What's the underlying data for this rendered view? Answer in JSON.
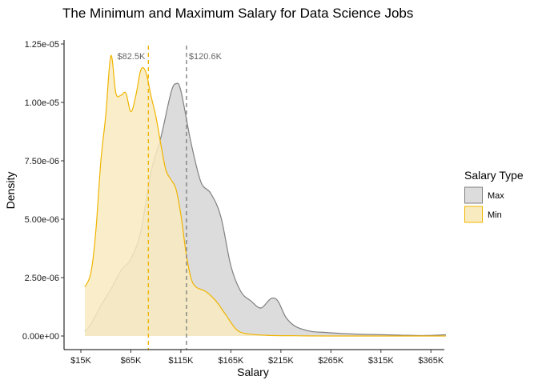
{
  "chart_data": {
    "type": "area",
    "title": "The Minimum and Maximum Salary for Data Science Jobs",
    "xlabel": "Salary",
    "ylabel": "Density",
    "xlim": [
      15000,
      380000
    ],
    "ylim": [
      0,
      1.25e-05
    ],
    "x_ticks": [
      15000,
      65000,
      115000,
      165000,
      215000,
      265000,
      315000,
      365000
    ],
    "x_tick_labels": [
      "$15K",
      "$65K",
      "$115K",
      "$165K",
      "$215K",
      "$265K",
      "$315K",
      "$365K"
    ],
    "y_ticks": [
      0,
      2.5e-06,
      5e-06,
      7.5e-06,
      1e-05,
      1.25e-05
    ],
    "y_tick_labels": [
      "0.00e+00",
      "2.50e-06",
      "5.00e-06",
      "7.50e-06",
      "1.00e-05",
      "1.25e-05"
    ],
    "grid": false,
    "legend": {
      "title": "Salary Type",
      "position": "right"
    },
    "series": [
      {
        "name": "Max",
        "color": "#808080",
        "fill": "#dcdcdc",
        "x": [
          19000,
          25000,
          35000,
          45000,
          55000,
          65000,
          75000,
          85000,
          95000,
          105000,
          110000,
          115000,
          125000,
          135000,
          145000,
          155000,
          165000,
          175000,
          185000,
          195000,
          205000,
          212000,
          220000,
          230000,
          245000,
          260000,
          280000,
          300000,
          320000,
          340000,
          360000,
          380000
        ],
        "y": [
          2e-07,
          5e-07,
          1.3e-06,
          2e-06,
          2.8e-06,
          3.3e-06,
          4.5e-06,
          7e-06,
          8.5e-06,
          1.04e-05,
          1.08e-05,
          1.05e-05,
          8.3e-06,
          6.6e-06,
          6.1e-06,
          5.1e-06,
          3e-06,
          1.9e-06,
          1.5e-06,
          1.2e-06,
          1.6e-06,
          1.5e-06,
          8e-07,
          4e-07,
          2e-07,
          1.5e-07,
          1e-07,
          7e-08,
          5e-08,
          3e-08,
          2e-08,
          5e-08
        ]
      },
      {
        "name": "Min",
        "color": "#f0b400",
        "fill": "#f8ebc0",
        "x": [
          19000,
          25000,
          30000,
          35000,
          40000,
          45000,
          50000,
          55000,
          60000,
          65000,
          70000,
          75000,
          80000,
          85000,
          90000,
          95000,
          100000,
          105000,
          110000,
          115000,
          120000,
          125000,
          130000,
          140000,
          150000,
          160000,
          170000,
          180000,
          200000,
          230000,
          260000,
          300000,
          340000,
          380000
        ],
        "y": [
          2.1e-06,
          2.7e-06,
          4.5e-06,
          7.5e-06,
          9.5e-06,
          1.2e-05,
          1.04e-05,
          1.03e-05,
          1.04e-05,
          9.6e-06,
          1.03e-05,
          1.14e-05,
          1.13e-05,
          1.03e-05,
          9.4e-06,
          8.2e-06,
          7.1e-06,
          6.7e-06,
          6.3e-06,
          5.2e-06,
          3.6e-06,
          2.5e-06,
          2.1e-06,
          1.9e-06,
          1.5e-06,
          9e-07,
          3e-07,
          1e-07,
          3e-08,
          1e-08,
          0.0,
          0.0,
          0.0,
          0.0
        ]
      }
    ],
    "reference_lines": [
      {
        "series": "Min",
        "value": 82500,
        "label": "$82.5K",
        "color": "#f0b400"
      },
      {
        "series": "Max",
        "value": 120600,
        "label": "$120.6K",
        "color": "#808080"
      }
    ]
  }
}
